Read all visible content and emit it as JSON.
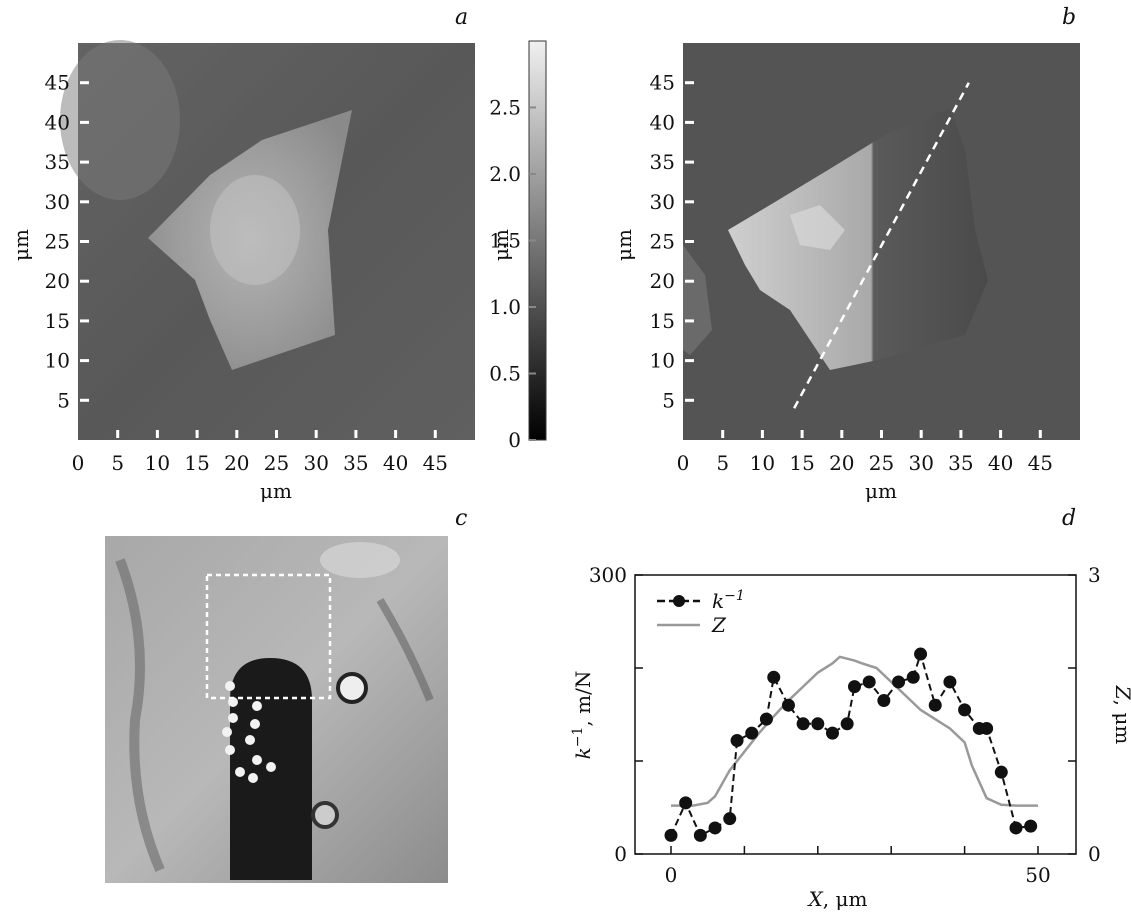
{
  "panels": {
    "a": {
      "letter": "a",
      "xlabel": "μm",
      "ylabel": "μm",
      "xticks": [
        "0",
        "5",
        "10",
        "15",
        "20",
        "25",
        "30",
        "35",
        "40",
        "45"
      ],
      "yticks": [
        "5",
        "10",
        "15",
        "20",
        "25",
        "30",
        "35",
        "40",
        "45"
      ]
    },
    "colorbar": {
      "label": "μm",
      "ticks": [
        "0",
        "0.5",
        "1.0",
        "1.5",
        "2.0",
        "2.5"
      ]
    },
    "b": {
      "letter": "b",
      "xlabel": "μm",
      "ylabel": "μm",
      "xticks": [
        "0",
        "5",
        "10",
        "15",
        "20",
        "25",
        "30",
        "35",
        "40",
        "45"
      ],
      "yticks": [
        "5",
        "10",
        "15",
        "20",
        "25",
        "30",
        "35",
        "40",
        "45"
      ]
    },
    "c": {
      "letter": "c"
    },
    "d": {
      "letter": "d",
      "xlabel_var": "X",
      "xlabel_unit": ", μm",
      "ylabel_left_var": "k",
      "ylabel_left_sup": "−1",
      "ylabel_left_unit": ", m/N",
      "ylabel_right_var": "Z",
      "ylabel_right_unit": ", μm",
      "xticks": [
        "0",
        "50"
      ],
      "yticks_left": [
        "0",
        "300"
      ],
      "yticks_right": [
        "0",
        "3"
      ],
      "legend": [
        {
          "var": "k",
          "sup": "−1"
        },
        {
          "var": "Z",
          "sup": ""
        }
      ]
    }
  },
  "chart_data": [
    {
      "type": "heatmap",
      "panel": "a",
      "xlim": [
        0,
        50
      ],
      "ylim": [
        0,
        50
      ],
      "colorbar_range": [
        0,
        3
      ]
    },
    {
      "type": "heatmap",
      "panel": "b",
      "xlim": [
        0,
        50
      ],
      "ylim": [
        0,
        50
      ],
      "profile_line": {
        "x": [
          14,
          36
        ],
        "y": [
          4,
          45
        ]
      }
    },
    {
      "type": "line",
      "panel": "d",
      "xlim": [
        0,
        50
      ],
      "ylim_left": [
        0,
        300
      ],
      "ylim_right": [
        0,
        3
      ],
      "series": [
        {
          "name": "k−1",
          "axis": "left",
          "style": "dashed-markers",
          "color": "#111111",
          "x": [
            0,
            2,
            4,
            6,
            8,
            9,
            11,
            13,
            14,
            16,
            18,
            20,
            22,
            24,
            25,
            27,
            29,
            31,
            33,
            34,
            36,
            38,
            40,
            42,
            43,
            45,
            47,
            49
          ],
          "y": [
            20,
            55,
            20,
            28,
            38,
            122,
            130,
            145,
            190,
            160,
            140,
            140,
            130,
            140,
            180,
            185,
            165,
            185,
            190,
            215,
            160,
            185,
            155,
            135,
            135,
            88,
            28,
            30
          ]
        },
        {
          "name": "Z",
          "axis": "right",
          "color": "#999999",
          "x": [
            0,
            3,
            5,
            6,
            8,
            10,
            12,
            14,
            16,
            18,
            20,
            22,
            23,
            25,
            26,
            28,
            30,
            32,
            34,
            36,
            38,
            40,
            41,
            43,
            45,
            47,
            50
          ],
          "y": [
            0.52,
            0.52,
            0.55,
            0.62,
            0.9,
            1.1,
            1.3,
            1.48,
            1.65,
            1.8,
            1.95,
            2.05,
            2.12,
            2.08,
            2.05,
            2.0,
            1.85,
            1.7,
            1.55,
            1.45,
            1.35,
            1.2,
            0.95,
            0.6,
            0.53,
            0.52,
            0.52
          ]
        }
      ]
    }
  ]
}
